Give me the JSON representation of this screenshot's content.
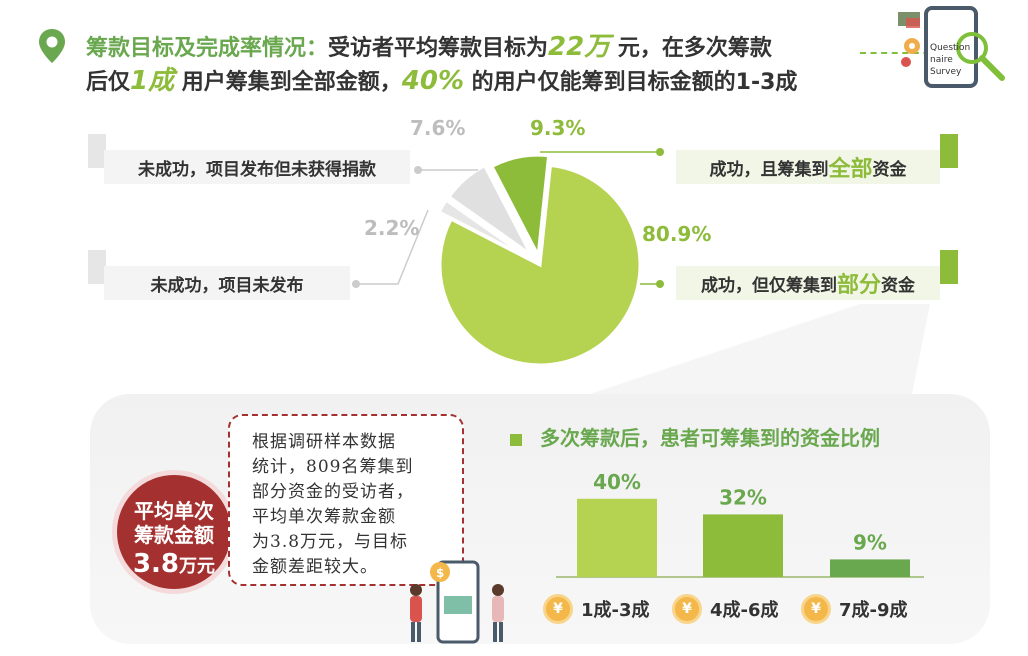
{
  "header": {
    "l1_lead": "筹款目标及完成率情况：",
    "l1_text": "受访者平均筹款目标为",
    "l1_hl": "22万",
    "l1_tail": " 元，在多次筹款",
    "l2_lead": "后仅",
    "l2_hl1": "1成",
    "l2_mid": " 用户筹集到全部金额，",
    "l2_hl2": "40%",
    "l2_tail": " 的用户仅能筹到目标金额的1-3成"
  },
  "survey_icon_text": [
    "Question",
    "naire",
    "Survey"
  ],
  "colors": {
    "green": "#8dbb3a",
    "dark_green": "#6aa84f",
    "gray": "#d9d9d9",
    "red": "#a43030",
    "coin": "#f3b74a"
  },
  "labels": {
    "l_top": "未成功，项目发布但未获得捐款",
    "l_bottom": "未成功，项目未发布",
    "r_top_a": "成功，且筹集到",
    "r_top_b": "全部",
    "r_top_c": "资金",
    "r_bottom_a": "成功，但仅筹集到",
    "r_bottom_b": "部分",
    "r_bottom_c": "资金"
  },
  "circle": {
    "line1": "平均单次",
    "line2": "筹款金额",
    "value": "3.8",
    "unit": "万元"
  },
  "note": [
    "根据调研样本数据",
    "统计，809名筹集到",
    "部分资金的受访者，",
    "平均单次筹款金额",
    "为3.8万元，与目标",
    "金额差距较大。"
  ],
  "chart_data": [
    {
      "type": "pie",
      "slices": [
        {
          "label": "成功，但仅筹集到部分资金",
          "value": 80.9,
          "display": "80.9%",
          "color": "#b5d250"
        },
        {
          "label": "未成功，项目未发布",
          "value": 2.2,
          "display": "2.2%",
          "color": "#e6e6e6"
        },
        {
          "label": "未成功，项目发布但未获得捐款",
          "value": 7.6,
          "display": "7.6%",
          "color": "#e0e0e0"
        },
        {
          "label": "成功，且筹集到全部资金",
          "value": 9.3,
          "display": "9.3%",
          "color": "#8dbb3a"
        }
      ]
    },
    {
      "type": "bar",
      "title": "多次筹款后，患者可筹集到的资金比例",
      "categories": [
        "1成-3成",
        "4成-6成",
        "7成-9成"
      ],
      "values": [
        40,
        32,
        9
      ],
      "value_labels": [
        "40%",
        "32%",
        "9%"
      ],
      "colors": [
        "#b5d250",
        "#8dbb3a",
        "#6aa84f"
      ],
      "ylim": [
        0,
        45
      ]
    }
  ]
}
